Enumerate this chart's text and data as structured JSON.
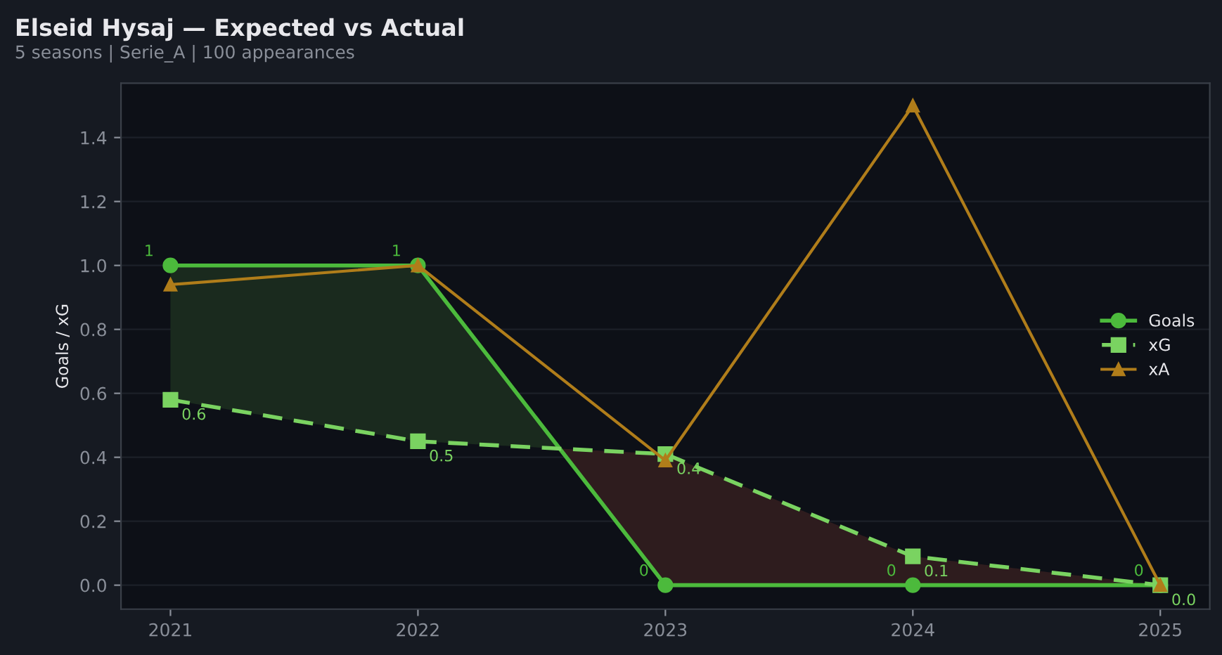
{
  "chart_data": {
    "type": "line",
    "title": "Elseid Hysaj — Expected vs Actual",
    "subtitle": "5 seasons | Serie_A | 100 appearances",
    "ylabel": "Goals / xG",
    "x": [
      2021,
      2022,
      2023,
      2024,
      2025
    ],
    "series": [
      {
        "name": "Goals",
        "color": "#4cba3c",
        "values": [
          1,
          1,
          0,
          0,
          0
        ],
        "marker": "circle",
        "line_style": "solid",
        "value_labels": [
          "1",
          "1",
          "0",
          "0",
          "0"
        ]
      },
      {
        "name": "xG",
        "color": "#7ad361",
        "values": [
          0.58,
          0.45,
          0.41,
          0.09,
          0.0
        ],
        "marker": "square",
        "line_style": "dashed",
        "value_labels": [
          "0.6",
          "0.5",
          "0.4",
          "0.1",
          "0.0"
        ]
      },
      {
        "name": "xA",
        "color": "#b07d1a",
        "values": [
          0.94,
          1.0,
          0.39,
          1.5,
          0.0
        ],
        "marker": "triangle",
        "line_style": "solid"
      }
    ],
    "xlim": [
      2020.8,
      2025.2
    ],
    "xticks": [
      2021,
      2022,
      2023,
      2024,
      2025
    ],
    "ylim": [
      -0.075,
      1.57
    ],
    "yticks": [
      {
        "value": 0,
        "label": "0.0"
      },
      0.2,
      0.4,
      0.6,
      0.8,
      {
        "value": 1,
        "label": "1.0"
      },
      1.2,
      1.4
    ],
    "grid": "y",
    "legend": "right"
  }
}
